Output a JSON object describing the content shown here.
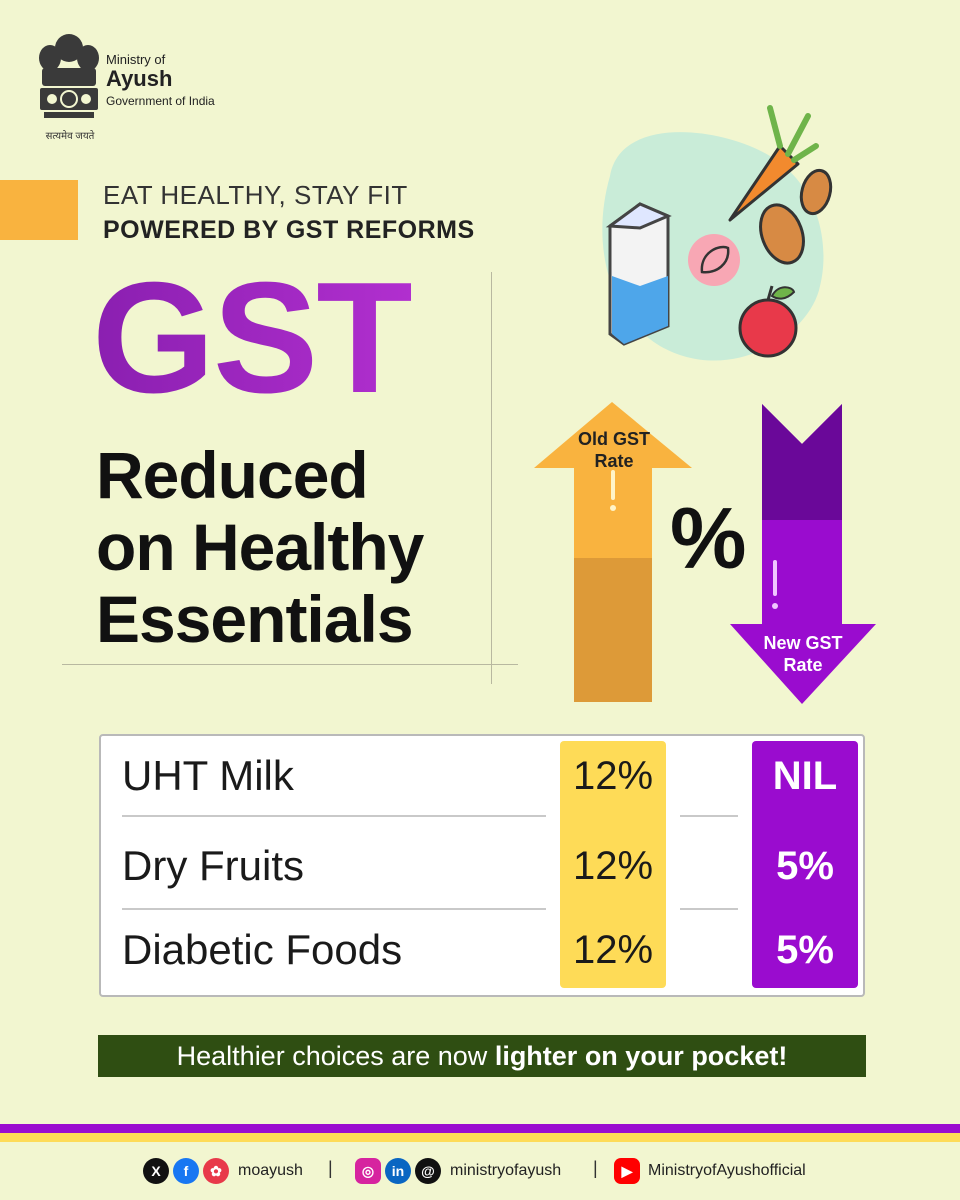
{
  "branding": {
    "ministry_line1": "Ministry of",
    "ministry_name": "Ayush",
    "government": "Government of India",
    "motto": "सत्यमेव जयते"
  },
  "tagline": {
    "line1": "EAT HEALTHY, STAY FIT",
    "line2": "POWERED BY GST REFORMS"
  },
  "headline": {
    "big": "GST",
    "line1": "Reduced",
    "line2": "on Healthy",
    "line3": "Essentials"
  },
  "arrows": {
    "old_label_line1": "Old GST",
    "old_label_line2": "Rate",
    "new_label_line1": "New GST",
    "new_label_line2": "Rate",
    "percent_symbol": "%"
  },
  "table": {
    "rows": [
      {
        "item": "UHT Milk",
        "old_rate": "12%",
        "new_rate": "NIL"
      },
      {
        "item": "Dry Fruits",
        "old_rate": "12%",
        "new_rate": "5%"
      },
      {
        "item": "Diabetic Foods",
        "old_rate": "12%",
        "new_rate": "5%"
      }
    ]
  },
  "banner": {
    "text_regular": "Healthier choices are now ",
    "text_bold": "lighter on your pocket!"
  },
  "social": {
    "handle1": "moayush",
    "handle2": "ministryofayush",
    "handle3": "MinistryofAyushofficial",
    "separator": "|",
    "icons": [
      "x-icon",
      "facebook-icon",
      "koo-icon",
      "instagram-icon",
      "linkedin-icon",
      "threads-icon",
      "youtube-icon"
    ]
  },
  "colors": {
    "background": "#f2f6d0",
    "purple": "#9a0ccf",
    "yellow": "#fedb57",
    "orange": "#f9b33f",
    "banner_green": "#2f4e12"
  }
}
